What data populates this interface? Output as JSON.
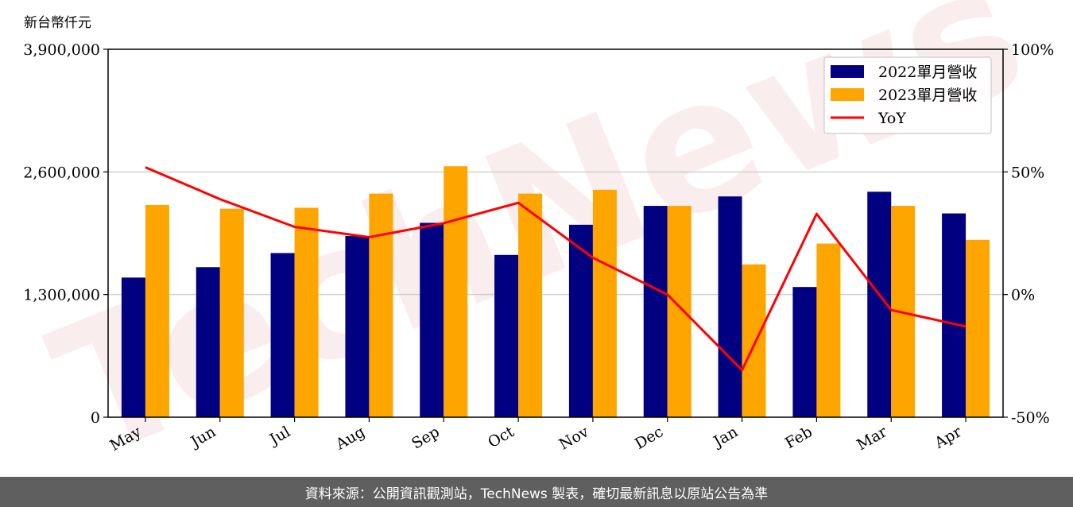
{
  "chart_data": {
    "type": "bar",
    "title": "",
    "ylabel": "新台幣仟元",
    "categories": [
      "May",
      "Jun",
      "Jul",
      "Aug",
      "Sep",
      "Oct",
      "Nov",
      "Dec",
      "Jan",
      "Feb",
      "Mar",
      "Apr"
    ],
    "series": [
      {
        "name": "2022單月營收",
        "type": "bar",
        "color": "#000080",
        "values": [
          1480000,
          1590000,
          1740000,
          1920000,
          2060000,
          1720000,
          2040000,
          2240000,
          2340000,
          1380000,
          2390000,
          2160000
        ]
      },
      {
        "name": "2023單月營收",
        "type": "bar",
        "color": "#ffa500",
        "values": [
          2250000,
          2210000,
          2220000,
          2370000,
          2660000,
          2370000,
          2410000,
          2240000,
          1620000,
          1840000,
          2240000,
          1880000
        ]
      },
      {
        "name": "YoY",
        "type": "line",
        "axis": "right",
        "color": "#ff0000",
        "unit": "%",
        "values": [
          51.9,
          38.9,
          27.6,
          23.4,
          29.1,
          37.4,
          15.0,
          0.0,
          -30.8,
          32.9,
          -6.3,
          -13.0
        ]
      }
    ],
    "y_left": {
      "min": 0,
      "max": 3900000,
      "ticks": [
        "0",
        "1,300,000",
        "2,600,000",
        "3,900,000"
      ]
    },
    "y_right": {
      "min": -50,
      "max": 100,
      "ticks": [
        "-50%",
        "0%",
        "50%",
        "100%"
      ]
    },
    "grid": true,
    "legend_position": "top-right"
  },
  "footer": {
    "source_text": "資料來源：公開資訊觀測站，TechNews 製表，確切最新訊息以原站公告為準"
  },
  "watermark": {
    "text": "TechNews"
  }
}
